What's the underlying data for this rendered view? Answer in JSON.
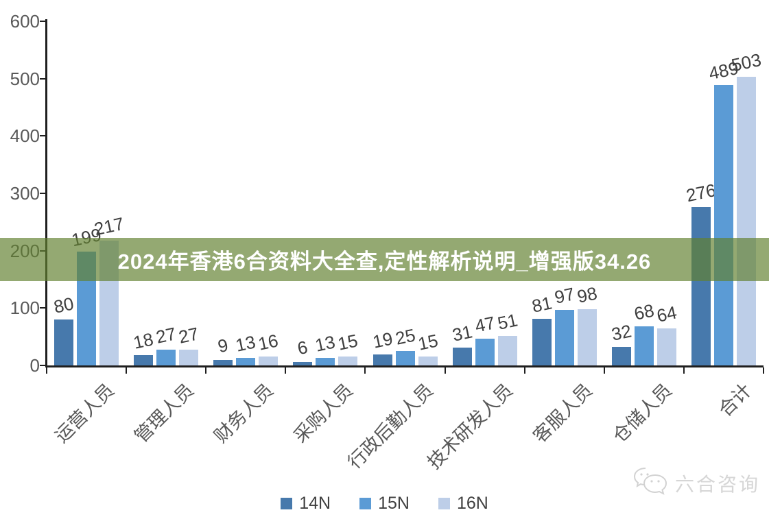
{
  "banner": {
    "text": "2024年香港6合资料大全查,定性解析说明_增强版34.26",
    "overlay_rgba": "rgba(97,128,47,0.68)",
    "text_color": "#FFFFFF"
  },
  "watermark": {
    "text": "六合咨询",
    "icon": "wechat-icon",
    "color": "#D6D6D6"
  },
  "chart_data": {
    "type": "bar",
    "title": "",
    "xlabel": "",
    "ylabel": "",
    "categories": [
      "运营人员",
      "管理人员",
      "财务人员",
      "采购人员",
      "行政后勤人员",
      "技术研发人员",
      "客服人员",
      "仓储人员",
      "合计"
    ],
    "series": [
      {
        "name": "14N",
        "color": "#4779AC",
        "values": [
          80,
          18,
          9,
          6,
          19,
          31,
          81,
          32,
          276
        ]
      },
      {
        "name": "15N",
        "color": "#5B9BD5",
        "values": [
          199,
          27,
          13,
          13,
          25,
          47,
          97,
          68,
          489
        ]
      },
      {
        "name": "16N",
        "color": "#BDCEE8",
        "values": [
          217,
          27,
          16,
          15,
          15,
          51,
          98,
          64,
          503
        ]
      }
    ],
    "ylim": [
      0,
      600
    ],
    "yticks": [
      0,
      100,
      200,
      300,
      400,
      500,
      600
    ],
    "grid": false,
    "legend_position": "bottom",
    "data_labels": true,
    "axis_color": "#1F1F1F",
    "tick_label_color": "#595959",
    "data_label_color": "#3F3F3F"
  }
}
